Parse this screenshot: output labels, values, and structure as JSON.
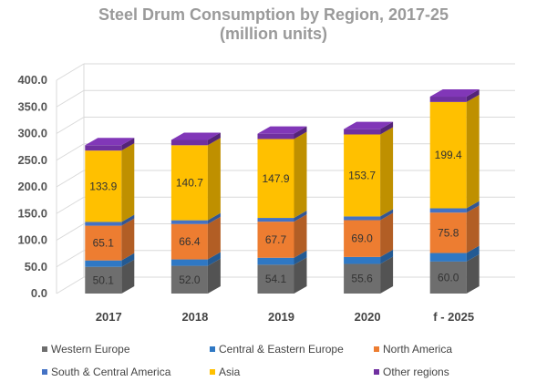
{
  "chart_data": {
    "type": "bar",
    "stacked": true,
    "style": "3d",
    "title": "Steel Drum Consumption by Region, 2017-25",
    "subtitle": "(million units)",
    "categories": [
      "2017",
      "2018",
      "2019",
      "2020",
      "f - 2025"
    ],
    "y_ticks": [
      "0.0",
      "50.0",
      "100.0",
      "150.0",
      "200.0",
      "250.0",
      "300.0",
      "350.0",
      "400.0"
    ],
    "ylim": [
      0,
      400
    ],
    "grid": true,
    "legend_position": "bottom",
    "series": [
      {
        "name": "Western Europe",
        "color": "#6e6e6e",
        "values": [
          50.1,
          52.0,
          54.1,
          55.6,
          60.0
        ]
      },
      {
        "name": "Central & Eastern Europe",
        "color": "#2f78c4",
        "values": [
          12,
          12,
          13,
          13,
          16
        ]
      },
      {
        "name": "North America",
        "color": "#ed7d31",
        "values": [
          65.1,
          66.4,
          67.7,
          69.0,
          75.8
        ]
      },
      {
        "name": "South & Central America",
        "color": "#4472c4",
        "values": [
          7,
          7,
          7,
          7,
          8
        ]
      },
      {
        "name": "Asia",
        "color": "#ffc000",
        "values": [
          133.9,
          140.7,
          147.9,
          153.7,
          199.4
        ]
      },
      {
        "name": "Other regions",
        "color": "#7030a0",
        "values": [
          10,
          10,
          10,
          10,
          10
        ]
      }
    ],
    "data_labels": [
      {
        "series": 0,
        "labels": [
          "50.1",
          "52.0",
          "54.1",
          "55.6",
          "60.0"
        ]
      },
      {
        "series": 2,
        "labels": [
          "65.1",
          "66.4",
          "67.7",
          "69.0",
          "75.8"
        ]
      },
      {
        "series": 4,
        "labels": [
          "133.9",
          "140.7",
          "147.9",
          "153.7",
          "199.4"
        ]
      }
    ]
  }
}
